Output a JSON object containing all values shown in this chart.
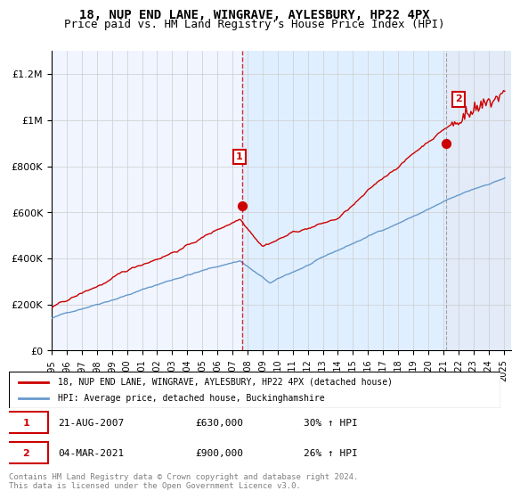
{
  "title1": "18, NUP END LANE, WINGRAVE, AYLESBURY, HP22 4PX",
  "title2": "Price paid vs. HM Land Registry's House Price Index (HPI)",
  "legend_line1": "18, NUP END LANE, WINGRAVE, AYLESBURY, HP22 4PX (detached house)",
  "legend_line2": "HPI: Average price, detached house, Buckinghamshire",
  "annotation1": {
    "label": "1",
    "date": "21-AUG-2007",
    "price": "£630,000",
    "hpi": "30% ↑ HPI",
    "x_year": 2007.64,
    "y_val": 630000
  },
  "annotation2": {
    "label": "2",
    "date": "04-MAR-2021",
    "price": "£900,000",
    "hpi": "26% ↑ HPI",
    "x_year": 2021.17,
    "y_val": 900000
  },
  "dashed_line1_x": 2007.64,
  "dashed_line2_x": 2021.17,
  "footer": "Contains HM Land Registry data © Crown copyright and database right 2024.\nThis data is licensed under the Open Government Licence v3.0.",
  "ylim": [
    0,
    1300000
  ],
  "xlim": [
    1995,
    2025.5
  ],
  "red_color": "#cc0000",
  "blue_color": "#6699cc",
  "bg_color": "#ddeeff",
  "bg_hatch_color": "#ccddee",
  "grid_color": "#cccccc",
  "annotation_box_color": "#cc0000"
}
